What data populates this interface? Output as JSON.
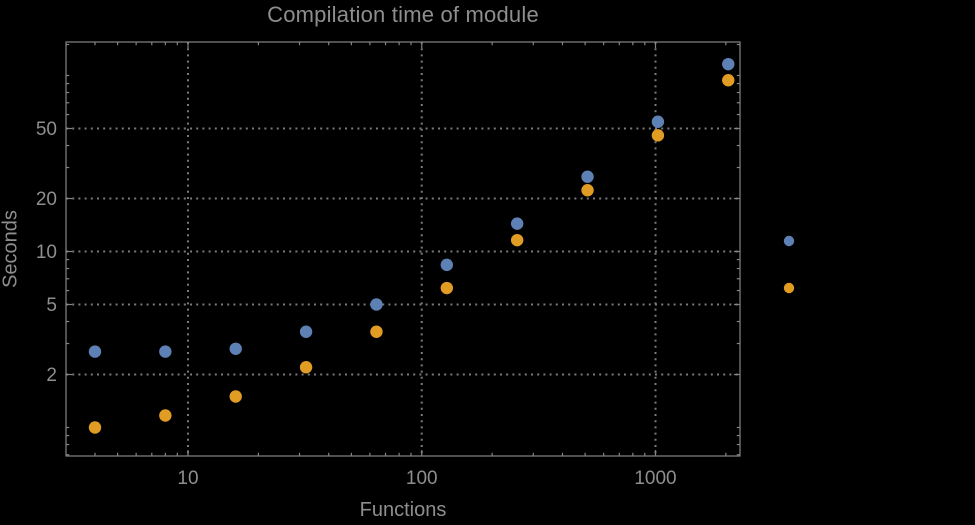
{
  "chart_data": {
    "type": "scatter",
    "title": "Compilation time of module",
    "xlabel": "Functions",
    "ylabel": "Seconds",
    "x_scale": "log",
    "y_scale": "log",
    "xlim": [
      3,
      2290
    ],
    "ylim": [
      0.69,
      155
    ],
    "x_major_ticks": [
      "10",
      "100",
      "1000"
    ],
    "y_major_ticks": [
      "2",
      "5",
      "10",
      "20",
      "50"
    ],
    "grid": "dotted gray lines at major ticks, frame on all four sides",
    "legend": {
      "position": "outside-right",
      "labels_visible": false,
      "markers": [
        "series-1",
        "series-2"
      ]
    },
    "x": [
      4,
      8,
      16,
      32,
      64,
      128,
      256,
      512,
      1024,
      2048
    ],
    "series": [
      {
        "name": "series-1",
        "color": "#5e81b5",
        "values": [
          2.7,
          2.7,
          2.8,
          3.5,
          5.0,
          8.4,
          14.4,
          26.6,
          54.6,
          116
        ]
      },
      {
        "name": "series-2",
        "color": "#e19c24",
        "values": [
          1.0,
          1.17,
          1.5,
          2.2,
          3.5,
          6.2,
          11.6,
          22.3,
          45.7,
          94
        ]
      }
    ],
    "colors": {
      "background": "#000000",
      "frame": "#858585",
      "grid": "#7a7a7a",
      "text": "#8e8e8e",
      "series1": "#5e81b5",
      "series2": "#e19c24"
    }
  }
}
